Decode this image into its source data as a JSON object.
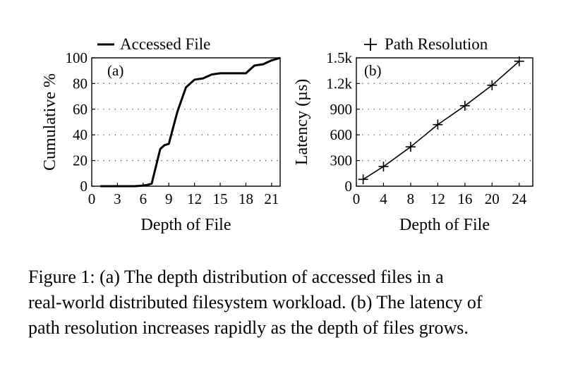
{
  "chart_data": [
    {
      "type": "line",
      "panel_label": "(a)",
      "xlabel": "Depth of File",
      "ylabel": "Cumulative %",
      "xlim": [
        0,
        22
      ],
      "ylim": [
        0,
        100
      ],
      "xticks": [
        0,
        3,
        6,
        9,
        12,
        15,
        18,
        21
      ],
      "yticks": [
        0,
        20,
        40,
        60,
        80,
        100
      ],
      "grid": "horizontal-dotted",
      "legend_position": "top",
      "series": [
        {
          "name": "Accessed File",
          "marker": "none",
          "x": [
            1,
            2,
            3,
            4,
            5,
            6,
            6.5,
            7,
            8,
            8.5,
            9,
            10,
            11,
            12,
            13,
            14,
            15,
            16,
            17,
            18,
            19,
            20,
            21,
            22
          ],
          "y": [
            0,
            0,
            0,
            0,
            0,
            0.5,
            1,
            2,
            29,
            32,
            33,
            58,
            77,
            83,
            84,
            87,
            88,
            88,
            88,
            88,
            94,
            95,
            98,
            100
          ]
        }
      ]
    },
    {
      "type": "line",
      "panel_label": "(b)",
      "xlabel": "Depth of File",
      "ylabel": "Latency (µs)",
      "xlim": [
        0,
        26
      ],
      "ylim": [
        0,
        1500
      ],
      "xticks": [
        0,
        4,
        8,
        12,
        16,
        20,
        24
      ],
      "yticks": [
        0,
        300,
        600,
        900,
        1200,
        1500
      ],
      "ytick_labels": [
        "0",
        "300",
        "600",
        "900",
        "1.2k",
        "1.5k"
      ],
      "grid": "horizontal-dotted",
      "legend_position": "top",
      "series": [
        {
          "name": "Path Resolution",
          "marker": "plus",
          "x": [
            1,
            4,
            8,
            12,
            16,
            20,
            24
          ],
          "y": [
            80,
            230,
            460,
            720,
            940,
            1180,
            1460
          ]
        }
      ]
    }
  ],
  "caption": {
    "line1": "Figure 1:  (a) The depth distribution of accessed files in a",
    "line2": "real-world distributed filesystem workload. (b) The latency of",
    "line3": "path resolution increases rapidly as the depth of files grows."
  }
}
